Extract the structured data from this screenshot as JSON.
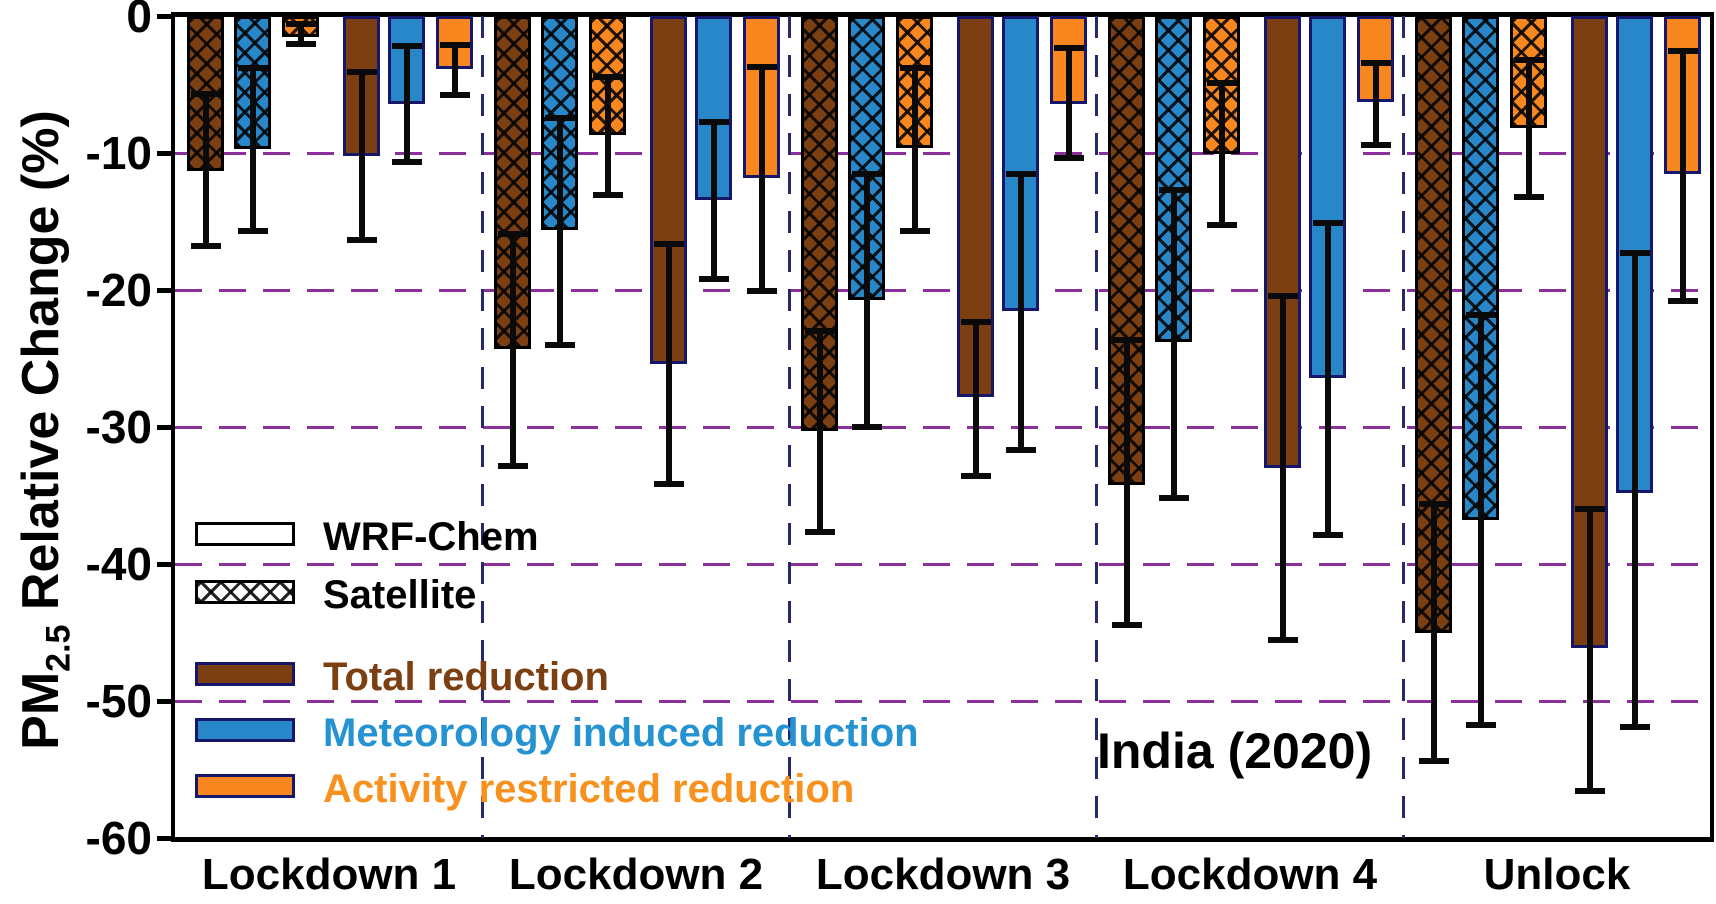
{
  "axes": {
    "y_title_prefix": "PM",
    "y_title_sub": "2.5",
    "y_title_suffix": " Relative Change (%)"
  },
  "chart_data": {
    "type": "bar",
    "title": "",
    "xlabel": "",
    "ylabel": "PM2.5 Relative Change (%)",
    "ylim": [
      -60,
      0
    ],
    "yticks": [
      0,
      -10,
      -20,
      -30,
      -40,
      -50,
      -60
    ],
    "ytick_labels": [
      "0",
      "-10",
      "-20",
      "-30",
      "-40",
      "-50",
      "-60"
    ],
    "grid": "horizontal-dashed",
    "annotation": "India (2020)",
    "categories": [
      "Lockdown 1",
      "Lockdown 2",
      "Lockdown 3",
      "Lockdown 4",
      "Unlock"
    ],
    "series": [
      {
        "name": "Satellite total reduction",
        "pattern": "hatched",
        "color": "#7B3F12",
        "values": [
          -11.3,
          -24.3,
          -30.3,
          -34.2,
          -45.0
        ],
        "err_high": [
          -5.5,
          -15.7,
          -22.8,
          -23.4,
          -35.4
        ],
        "err_low": [
          -17.0,
          -33.1,
          -37.9,
          -44.7,
          -54.6
        ]
      },
      {
        "name": "Satellite meteorology induced reduction",
        "pattern": "hatched",
        "color": "#2787C8",
        "values": [
          -9.7,
          -15.6,
          -20.7,
          -23.8,
          -36.8
        ],
        "err_high": [
          -3.6,
          -7.2,
          -11.3,
          -12.5,
          -21.6
        ],
        "err_low": [
          -15.9,
          -24.2,
          -30.2,
          -35.4,
          -52.0
        ]
      },
      {
        "name": "Satellite activity restricted reduction",
        "pattern": "hatched",
        "color": "#F8871F",
        "values": [
          -1.5,
          -8.7,
          -9.6,
          -10.1,
          -8.2
        ],
        "err_high": [
          -0.4,
          -4.2,
          -3.6,
          -4.7,
          -3.0
        ],
        "err_low": [
          -2.3,
          -13.3,
          -15.9,
          -15.5,
          -13.4
        ]
      },
      {
        "name": "WRF-Chem total reduction",
        "pattern": "solid",
        "color": "#7B3F12",
        "values": [
          -10.2,
          -25.4,
          -27.8,
          -33.0,
          -46.1
        ],
        "err_high": [
          -3.9,
          -16.4,
          -22.1,
          -20.2,
          -35.8
        ],
        "err_low": [
          -16.6,
          -34.4,
          -33.8,
          -45.8,
          -56.8
        ]
      },
      {
        "name": "WRF-Chem meteorology induced reduction",
        "pattern": "solid",
        "color": "#2787C8",
        "values": [
          -6.4,
          -13.4,
          -21.5,
          -26.4,
          -34.8
        ],
        "err_high": [
          -2.0,
          -7.5,
          -11.3,
          -14.9,
          -17.1
        ],
        "err_low": [
          -10.9,
          -19.4,
          -31.9,
          -38.1,
          -52.1
        ]
      },
      {
        "name": "WRF-Chem activity restricted reduction",
        "pattern": "solid",
        "color": "#F8871F",
        "values": [
          -3.9,
          -11.8,
          -6.4,
          -6.3,
          -11.5
        ],
        "err_high": [
          -1.9,
          -3.5,
          -2.1,
          -3.2,
          -2.3
        ],
        "err_low": [
          -6.0,
          -20.3,
          -10.6,
          -9.6,
          -21.0
        ]
      }
    ],
    "legend": [
      {
        "label": "WRF-Chem",
        "pattern": "solid",
        "fill": "#FFFFFF",
        "text_color": "#000000"
      },
      {
        "label": "Satellite",
        "pattern": "hatched",
        "fill": "#FFFFFF",
        "text_color": "#000000"
      },
      {
        "label": "Total reduction",
        "pattern": "solid",
        "fill": "#7B3F12",
        "text_color": "#7B3F12"
      },
      {
        "label": "Meteorology induced reduction",
        "pattern": "solid",
        "fill": "#2787C8",
        "text_color": "#2592D2"
      },
      {
        "label": "Activity restricted reduction",
        "pattern": "solid",
        "fill": "#F8871F",
        "text_color": "#F8911D"
      }
    ],
    "colors": {
      "gridline": "#8B2F9B",
      "group_divider": "#28286E",
      "solid_bar_outline": "#16166B",
      "hatched_bar_outline": "#000000",
      "error_bar": "#0A0A0A"
    },
    "legend_position": "lower-left-inside",
    "annotation_position": "lower-right-inside"
  }
}
